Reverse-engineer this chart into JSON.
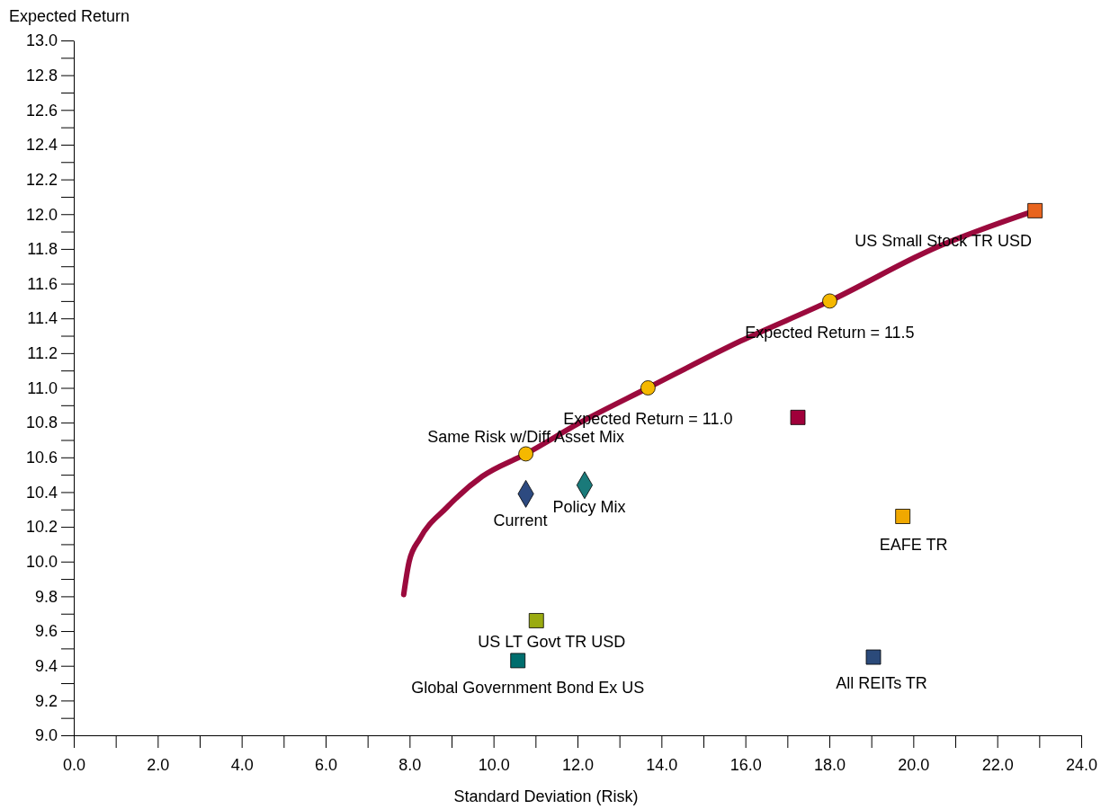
{
  "chart_data": {
    "type": "scatter",
    "xlabel": "Standard Deviation (Risk)",
    "ylabel": "Expected Return",
    "xlim": [
      0,
      24
    ],
    "ylim": [
      9,
      13
    ],
    "grid": false,
    "legend": false,
    "xticks": [
      {
        "value": 0,
        "label": "0.0"
      },
      {
        "value": 1,
        "label": null
      },
      {
        "value": 2,
        "label": "2.0"
      },
      {
        "value": 3,
        "label": null
      },
      {
        "value": 4,
        "label": "4.0"
      },
      {
        "value": 5,
        "label": null
      },
      {
        "value": 6,
        "label": "6.0"
      },
      {
        "value": 7,
        "label": null
      },
      {
        "value": 8,
        "label": "8.0"
      },
      {
        "value": 9,
        "label": null
      },
      {
        "value": 10,
        "label": "10.0"
      },
      {
        "value": 11,
        "label": null
      },
      {
        "value": 12,
        "label": "12.0"
      },
      {
        "value": 13,
        "label": null
      },
      {
        "value": 14,
        "label": "14.0"
      },
      {
        "value": 15,
        "label": null
      },
      {
        "value": 16,
        "label": "16.0"
      },
      {
        "value": 17,
        "label": null
      },
      {
        "value": 18,
        "label": "18.0"
      },
      {
        "value": 19,
        "label": null
      },
      {
        "value": 20,
        "label": "20.0"
      },
      {
        "value": 21,
        "label": null
      },
      {
        "value": 22,
        "label": "22.0"
      },
      {
        "value": 23,
        "label": null
      },
      {
        "value": 24,
        "label": "24.0"
      }
    ],
    "yticks": [
      {
        "value": 9,
        "label": "9.0"
      },
      {
        "value": 9.1,
        "label": null
      },
      {
        "value": 9.2,
        "label": "9.2"
      },
      {
        "value": 9.3,
        "label": null
      },
      {
        "value": 9.4,
        "label": "9.4"
      },
      {
        "value": 9.5,
        "label": null
      },
      {
        "value": 9.6,
        "label": "9.6"
      },
      {
        "value": 9.7,
        "label": null
      },
      {
        "value": 9.8,
        "label": "9.8"
      },
      {
        "value": 9.9,
        "label": null
      },
      {
        "value": 10,
        "label": "10.0"
      },
      {
        "value": 10.1,
        "label": null
      },
      {
        "value": 10.2,
        "label": "10.2"
      },
      {
        "value": 10.3,
        "label": null
      },
      {
        "value": 10.4,
        "label": "10.4"
      },
      {
        "value": 10.5,
        "label": null
      },
      {
        "value": 10.6,
        "label": "10.6"
      },
      {
        "value": 10.7,
        "label": null
      },
      {
        "value": 10.8,
        "label": "10.8"
      },
      {
        "value": 10.9,
        "label": null
      },
      {
        "value": 11,
        "label": "11.0"
      },
      {
        "value": 11.1,
        "label": null
      },
      {
        "value": 11.2,
        "label": "11.2"
      },
      {
        "value": 11.3,
        "label": null
      },
      {
        "value": 11.4,
        "label": "11.4"
      },
      {
        "value": 11.5,
        "label": null
      },
      {
        "value": 11.6,
        "label": "11.6"
      },
      {
        "value": 11.7,
        "label": null
      },
      {
        "value": 11.8,
        "label": "11.8"
      },
      {
        "value": 11.9,
        "label": null
      },
      {
        "value": 12,
        "label": "12.0"
      },
      {
        "value": 12.1,
        "label": null
      },
      {
        "value": 12.2,
        "label": "12.2"
      },
      {
        "value": 12.3,
        "label": null
      },
      {
        "value": 12.4,
        "label": "12.4"
      },
      {
        "value": 12.5,
        "label": null
      },
      {
        "value": 12.6,
        "label": "12.6"
      },
      {
        "value": 12.7,
        "label": null
      },
      {
        "value": 12.8,
        "label": "12.8"
      },
      {
        "value": 12.9,
        "label": null
      },
      {
        "value": 13,
        "label": "13.0"
      }
    ],
    "series": [
      {
        "type": "line",
        "color": "#9b0a3d",
        "marker": "none",
        "line_style": "solid",
        "x": [
          7.86,
          7.99,
          8.24,
          8.88,
          9.73,
          10.77,
          12.06,
          13.68,
          15.89,
          18.01,
          20.56,
          22.9
        ],
        "values": [
          9.81,
          10.0,
          10.13,
          10.31,
          10.49,
          10.62,
          10.8,
          11.0,
          11.27,
          11.5,
          11.81,
          12.02
        ]
      },
      {
        "name": "US Small Stock TR USD",
        "color": "#e8641e",
        "marker": "square",
        "x": [
          22.9
        ],
        "values": [
          12.02
        ]
      },
      {
        "name": "Expected Return = 11.5",
        "color": "#f5b800",
        "marker": "circle",
        "x": [
          18.01
        ],
        "values": [
          11.5
        ]
      },
      {
        "name": "Expected Return = 11.0",
        "color": "#f5b800",
        "marker": "circle",
        "x": [
          13.68
        ],
        "values": [
          11.0
        ]
      },
      {
        "name": "Same Risk w/Diff Asset Mix",
        "color": "#f5b800",
        "marker": "circle",
        "x": [
          10.77
        ],
        "values": [
          10.62
        ]
      },
      {
        "name": "Current",
        "color": "#2d4a80",
        "marker": "diamond",
        "x": [
          10.77
        ],
        "values": [
          10.39
        ]
      },
      {
        "name": "Policy Mix",
        "color": "#1a7a7a",
        "marker": "diamond",
        "x": [
          12.17
        ],
        "values": [
          10.44
        ]
      },
      {
        "color": "#a0003a",
        "marker": "square",
        "x": [
          17.25
        ],
        "values": [
          10.83
        ]
      },
      {
        "name": "EAFE TR",
        "color": "#f0a800",
        "marker": "square",
        "x": [
          19.75
        ],
        "values": [
          10.26
        ]
      },
      {
        "name": "US LT Govt TR USD",
        "color": "#9aab10",
        "marker": "square",
        "x": [
          11.02
        ],
        "values": [
          9.66
        ]
      },
      {
        "name": "Global Government Bond Ex US",
        "color": "#006e6e",
        "marker": "square",
        "x": [
          10.58
        ],
        "values": [
          9.43
        ]
      },
      {
        "name": "All REITs TR",
        "color": "#2b4a7a",
        "marker": "square",
        "x": [
          19.05
        ],
        "values": [
          9.45
        ]
      }
    ]
  }
}
